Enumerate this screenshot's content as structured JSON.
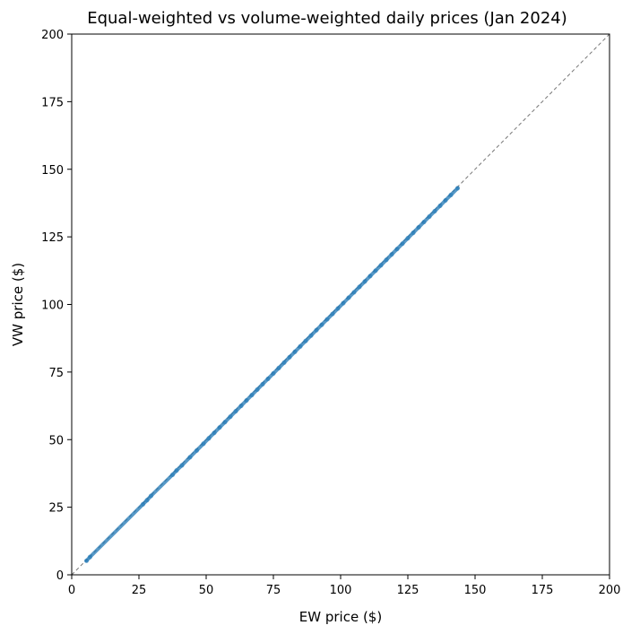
{
  "chart_data": {
    "type": "scatter",
    "title": "Equal-weighted vs volume-weighted daily prices (Jan 2024)",
    "xlabel": "EW price ($)",
    "ylabel": "VW price ($)",
    "xlim": [
      0,
      200
    ],
    "ylim": [
      0,
      200
    ],
    "xticks": [
      0,
      25,
      50,
      75,
      100,
      125,
      150,
      175,
      200
    ],
    "yticks": [
      0,
      25,
      50,
      75,
      100,
      125,
      150,
      175,
      200
    ],
    "grid": false,
    "legend": "none",
    "reference_line": {
      "style": "dashed",
      "color": "#777777",
      "from": [
        0,
        0
      ],
      "to": [
        200,
        200
      ]
    },
    "point_color": "#1f77b4",
    "series": [
      {
        "x": [
          5.5,
          6.8,
          26.5,
          28.0,
          29.5,
          37.5,
          39.0,
          41.0,
          44.0,
          46.5,
          49.0,
          51.0,
          53.0,
          55.0,
          57.0,
          59.0,
          61.0,
          63.0,
          65.0,
          67.0,
          69.0,
          71.0,
          73.0,
          75.0,
          77.0,
          79.0,
          81.0,
          83.0,
          85.0,
          87.0,
          89.0,
          91.0,
          93.0,
          95.0,
          97.0,
          99.0,
          101.0,
          103.0,
          105.0,
          107.0,
          109.0,
          111.0,
          113.0,
          115.0,
          117.0,
          119.0,
          121.0,
          123.0,
          125.0,
          127.0,
          129.0,
          131.0,
          133.0,
          135.0,
          137.0,
          139.0,
          141.0,
          143.5
        ],
        "y": [
          5.2,
          6.6,
          26.1,
          27.6,
          29.2,
          37.0,
          38.6,
          40.5,
          43.5,
          46.0,
          48.5,
          50.5,
          52.5,
          54.5,
          56.5,
          58.5,
          60.5,
          62.5,
          64.5,
          66.5,
          68.5,
          70.5,
          72.5,
          74.5,
          76.5,
          78.5,
          80.5,
          82.5,
          84.5,
          86.5,
          88.5,
          90.5,
          92.5,
          94.5,
          96.5,
          98.5,
          100.5,
          102.5,
          104.5,
          106.5,
          108.5,
          110.5,
          112.5,
          114.5,
          116.5,
          118.5,
          120.5,
          122.5,
          124.5,
          126.5,
          128.5,
          130.5,
          132.5,
          134.5,
          136.5,
          138.5,
          140.5,
          143.0
        ]
      }
    ]
  }
}
